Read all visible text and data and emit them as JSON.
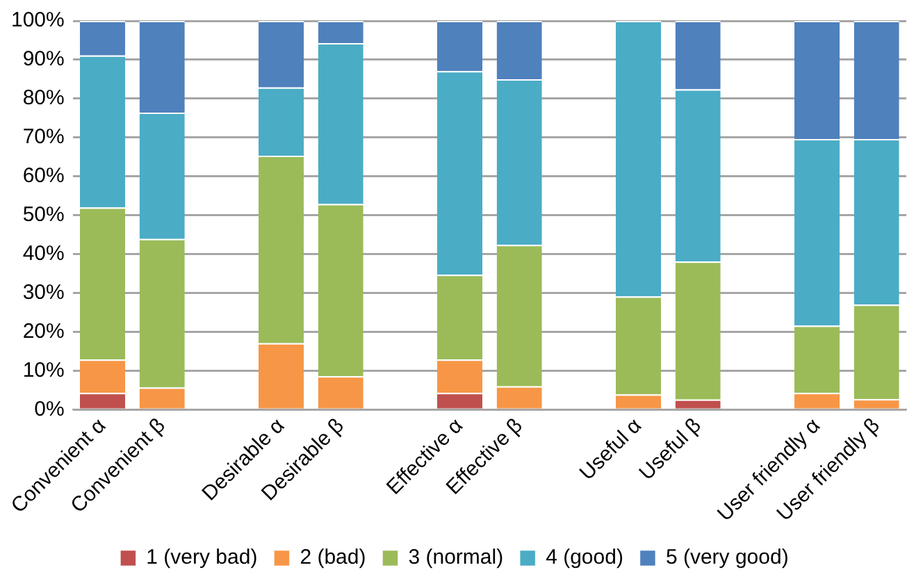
{
  "chart_data": {
    "type": "bar",
    "stacked": true,
    "categories": [
      "Convenient α",
      "Convenient β",
      null,
      "Desirable α",
      "Desirable β",
      null,
      "Effective α",
      "Effective β",
      null,
      "Useful α",
      "Useful β",
      null,
      "User friendly α",
      "User friendly β"
    ],
    "series": [
      {
        "name": "1 (very bad)",
        "color": "#c0504d",
        "values": [
          4.3,
          0,
          null,
          0,
          0,
          null,
          4.3,
          0,
          null,
          0,
          2.6,
          null,
          0,
          0
        ]
      },
      {
        "name": "2 (bad)",
        "color": "#f79646",
        "values": [
          8.6,
          5.7,
          null,
          17.1,
          8.6,
          null,
          8.6,
          6.0,
          null,
          3.9,
          0,
          null,
          4.3,
          2.7
        ]
      },
      {
        "name": "3 (normal)",
        "color": "#9bbb59",
        "values": [
          39.1,
          38.2,
          null,
          48.2,
          44.3,
          null,
          21.8,
          36.4,
          null,
          25.2,
          35.5,
          null,
          17.3,
          24.3
        ]
      },
      {
        "name": "4 (good)",
        "color": "#4bacc6",
        "values": [
          39.1,
          32.5,
          null,
          17.6,
          41.4,
          null,
          52.4,
          42.6,
          null,
          70.9,
          44.3,
          null,
          48.0,
          42.6
        ]
      },
      {
        "name": "5 (very good)",
        "color": "#4f81bd",
        "values": [
          8.9,
          23.6,
          null,
          17.1,
          5.7,
          null,
          12.9,
          15.0,
          null,
          0,
          17.6,
          null,
          30.4,
          30.4
        ]
      }
    ],
    "ylim": [
      0,
      100
    ],
    "yticks": [
      {
        "value": 0,
        "label": "0%"
      },
      {
        "value": 10,
        "label": "10%"
      },
      {
        "value": 20,
        "label": "20%"
      },
      {
        "value": 30,
        "label": "30%"
      },
      {
        "value": 40,
        "label": "40%"
      },
      {
        "value": 50,
        "label": "50%"
      },
      {
        "value": 60,
        "label": "60%"
      },
      {
        "value": 70,
        "label": "70%"
      },
      {
        "value": 80,
        "label": "80%"
      },
      {
        "value": 90,
        "label": "90%"
      },
      {
        "value": 100,
        "label": "100%"
      }
    ],
    "grid": "y",
    "legend": "bottom"
  }
}
